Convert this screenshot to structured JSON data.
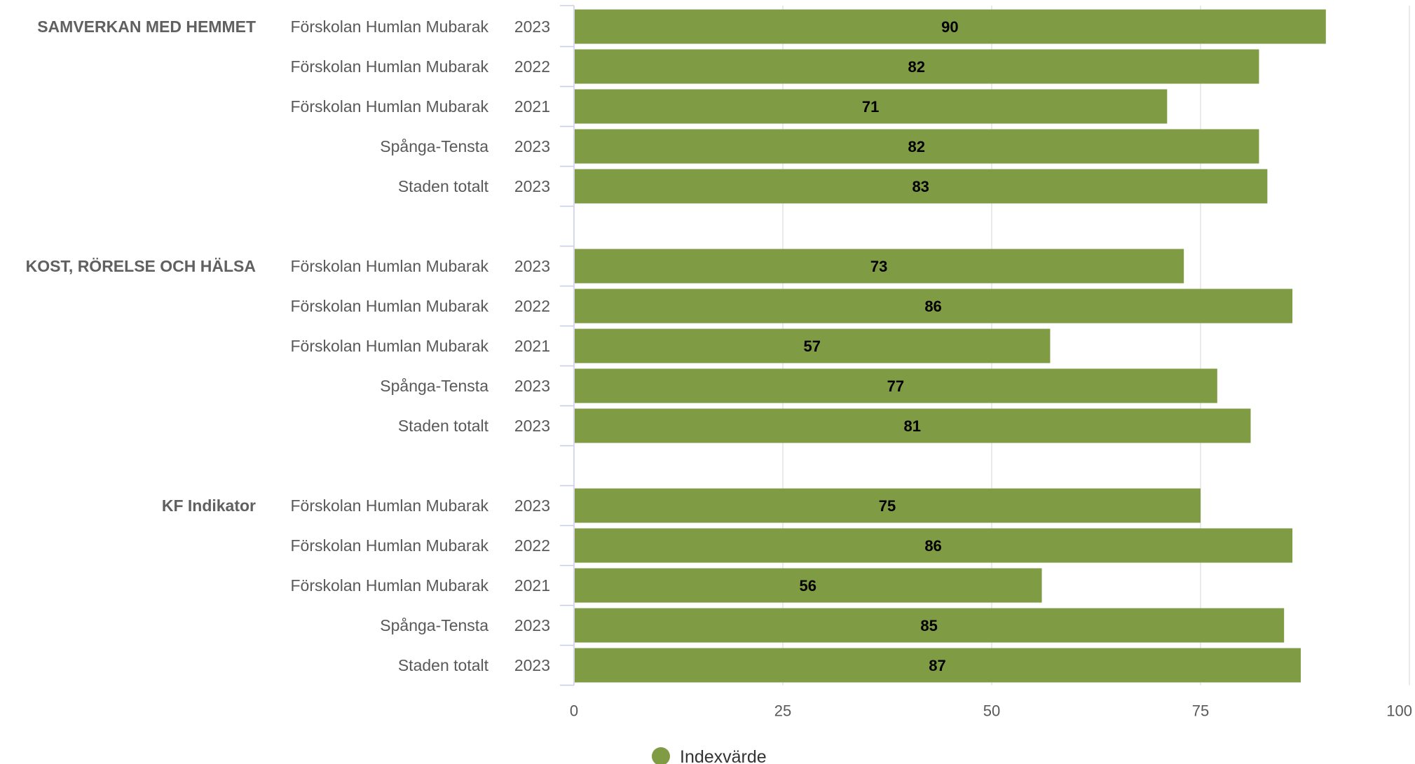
{
  "chart_data": {
    "type": "bar",
    "orientation": "horizontal",
    "xlim": [
      0,
      100
    ],
    "xticks": [
      0,
      25,
      50,
      75,
      100
    ],
    "grid": true,
    "legend_position": "bottom-center",
    "colors": {
      "bar": "#7f9c45",
      "grid": "#e3e3e3",
      "axis": "#c8cde6"
    },
    "legend": [
      {
        "name": "Indexvärde",
        "color": "#7f9c45"
      }
    ],
    "groups": [
      {
        "name": "SAMVERKAN MED HEMMET",
        "rows": [
          {
            "label": "Förskolan Humlan Mubarak",
            "year": "2023",
            "value": 90
          },
          {
            "label": "Förskolan Humlan Mubarak",
            "year": "2022",
            "value": 82
          },
          {
            "label": "Förskolan Humlan Mubarak",
            "year": "2021",
            "value": 71
          },
          {
            "label": "Spånga-Tensta",
            "year": "2023",
            "value": 82
          },
          {
            "label": "Staden totalt",
            "year": "2023",
            "value": 83
          }
        ]
      },
      {
        "name": "KOST, RÖRELSE OCH HÄLSA",
        "rows": [
          {
            "label": "Förskolan Humlan Mubarak",
            "year": "2023",
            "value": 73
          },
          {
            "label": "Förskolan Humlan Mubarak",
            "year": "2022",
            "value": 86
          },
          {
            "label": "Förskolan Humlan Mubarak",
            "year": "2021",
            "value": 57
          },
          {
            "label": "Spånga-Tensta",
            "year": "2023",
            "value": 77
          },
          {
            "label": "Staden totalt",
            "year": "2023",
            "value": 81
          }
        ]
      },
      {
        "name": "KF Indikator",
        "rows": [
          {
            "label": "Förskolan Humlan Mubarak",
            "year": "2023",
            "value": 75
          },
          {
            "label": "Förskolan Humlan Mubarak",
            "year": "2022",
            "value": 86
          },
          {
            "label": "Förskolan Humlan Mubarak",
            "year": "2021",
            "value": 56
          },
          {
            "label": "Spånga-Tensta",
            "year": "2023",
            "value": 85
          },
          {
            "label": "Staden totalt",
            "year": "2023",
            "value": 87
          }
        ]
      }
    ]
  }
}
